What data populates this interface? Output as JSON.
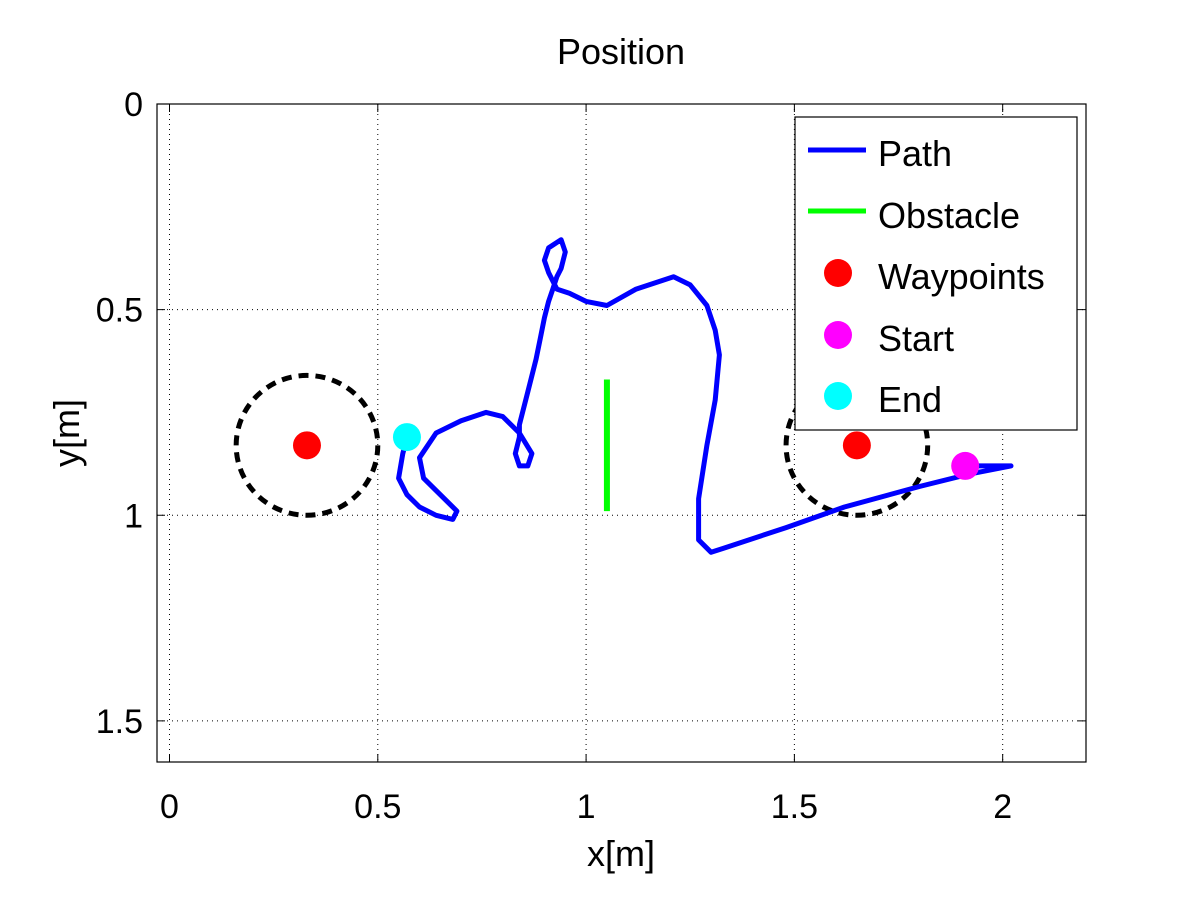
{
  "chart_data": {
    "type": "scatter",
    "title": "Position",
    "xlabel": "x[m]",
    "ylabel": "y[m]",
    "xlim": [
      -0.03,
      2.2
    ],
    "ylim": [
      0,
      1.6
    ],
    "y_reversed": true,
    "grid": true,
    "legend_position": "top-right",
    "xticks": [
      0,
      0.5,
      1,
      1.5,
      2
    ],
    "xtick_labels": [
      "0",
      "0.5",
      "1",
      "1.5",
      "2"
    ],
    "yticks": [
      0,
      0.5,
      1,
      1.5
    ],
    "ytick_labels": [
      "0",
      "0.5",
      "1",
      "1.5"
    ],
    "colors": {
      "path": "#0000ff",
      "obstacle": "#00ff00",
      "waypoints": "#ff0000",
      "start": "#ff00ff",
      "end": "#00ffff",
      "circle": "#000000"
    },
    "series": [
      {
        "name": "Path",
        "style": "line",
        "x": [
          1.91,
          2.02,
          1.92,
          1.8,
          1.62,
          1.48,
          1.33,
          1.3,
          1.27,
          1.27,
          1.29,
          1.31,
          1.32,
          1.31,
          1.29,
          1.25,
          1.21,
          1.12,
          1.05,
          1.0,
          0.96,
          0.93,
          0.91,
          0.9,
          0.91,
          0.94,
          0.95,
          0.94,
          0.93,
          0.92,
          0.91,
          0.9,
          0.89,
          0.88,
          0.86,
          0.84,
          0.84,
          0.83,
          0.84,
          0.86,
          0.87,
          0.84,
          0.8,
          0.76,
          0.7,
          0.64,
          0.6,
          0.61,
          0.65,
          0.69,
          0.68,
          0.64,
          0.6,
          0.57,
          0.55,
          0.56,
          0.57
        ],
        "y": [
          0.88,
          0.88,
          0.9,
          0.93,
          0.98,
          1.03,
          1.08,
          1.09,
          1.06,
          0.96,
          0.83,
          0.72,
          0.61,
          0.55,
          0.49,
          0.44,
          0.42,
          0.45,
          0.49,
          0.48,
          0.46,
          0.45,
          0.41,
          0.38,
          0.35,
          0.33,
          0.36,
          0.4,
          0.42,
          0.45,
          0.48,
          0.52,
          0.57,
          0.62,
          0.7,
          0.78,
          0.81,
          0.85,
          0.88,
          0.88,
          0.85,
          0.8,
          0.76,
          0.75,
          0.77,
          0.8,
          0.86,
          0.91,
          0.95,
          0.99,
          1.01,
          1.0,
          0.98,
          0.95,
          0.91,
          0.85,
          0.81
        ]
      },
      {
        "name": "Obstacle",
        "style": "line",
        "x": [
          1.05,
          1.05
        ],
        "y": [
          0.67,
          0.99
        ]
      },
      {
        "name": "Waypoints",
        "style": "marker",
        "x": [
          0.33,
          1.65
        ],
        "y": [
          0.83,
          0.83
        ]
      },
      {
        "name": "Start",
        "style": "marker",
        "x": [
          1.91
        ],
        "y": [
          0.88
        ]
      },
      {
        "name": "End",
        "style": "marker",
        "x": [
          0.57
        ],
        "y": [
          0.81
        ]
      }
    ],
    "waypoint_circles": [
      {
        "cx": 0.33,
        "cy": 0.83,
        "radius": 0.17
      },
      {
        "cx": 1.65,
        "cy": 0.83,
        "radius": 0.17
      }
    ]
  }
}
